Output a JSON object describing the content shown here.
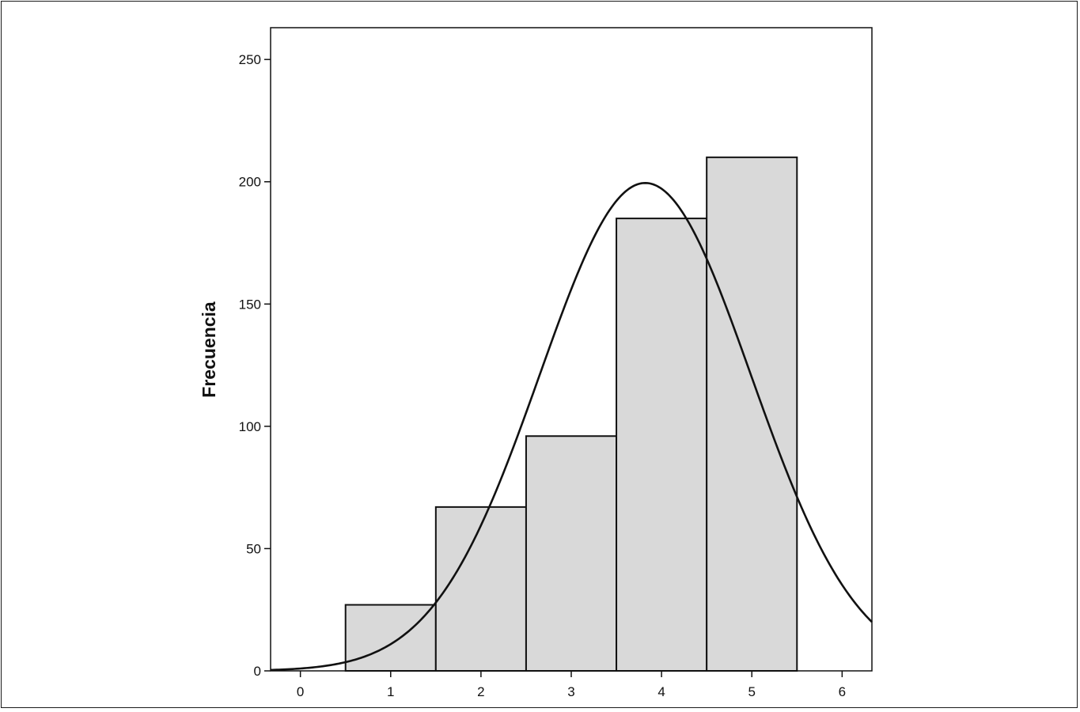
{
  "chart_data": {
    "type": "bar",
    "title": "",
    "xlabel": "",
    "ylabel": "Frecuencia",
    "categories": [
      "1",
      "2",
      "3",
      "4",
      "5"
    ],
    "bins": [
      1,
      2,
      3,
      4,
      5
    ],
    "values": [
      27,
      67,
      96,
      185,
      210
    ],
    "bar_color": "#d9d9d9",
    "edge_color": "#111111",
    "xlim": [
      -0.33,
      6.33
    ],
    "ylim": [
      0,
      263
    ],
    "x_ticks": [
      0,
      1,
      2,
      3,
      4,
      5,
      6
    ],
    "y_ticks": [
      0,
      50,
      100,
      150,
      200,
      250
    ],
    "normal_curve": {
      "mean": 3.82,
      "sd": 1.17,
      "peak": 199.5
    },
    "grid": false,
    "legend": "none"
  }
}
